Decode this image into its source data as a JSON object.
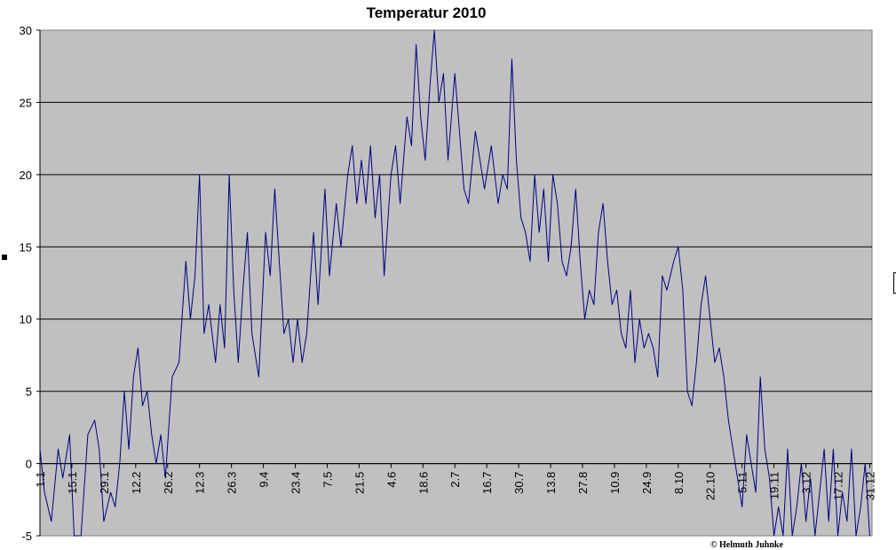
{
  "chart_data": {
    "type": "line",
    "title": "Temperatur 2010",
    "xlabel": "",
    "ylabel": "",
    "ylim": [
      -5,
      30
    ],
    "yticks": [
      -5,
      0,
      5,
      10,
      15,
      20,
      25,
      30
    ],
    "grid": true,
    "background": "#c0c0c0",
    "line_color": "#000080",
    "x_tick_labels": [
      "1.1",
      "15.1",
      "29.1",
      "12.2",
      "26.2",
      "12.3",
      "26.3",
      "9.4",
      "23.4",
      "7.5",
      "21.5",
      "4.6",
      "18.6",
      "2.7",
      "16.7",
      "30.7",
      "13.8",
      "27.8",
      "10.9",
      "24.9",
      "8.10",
      "22.10",
      "5.11",
      "19.11",
      "3.12",
      "17.12",
      "31.12"
    ],
    "x_tick_days": [
      0,
      14,
      28,
      42,
      56,
      70,
      84,
      98,
      112,
      126,
      140,
      154,
      168,
      182,
      196,
      210,
      224,
      238,
      252,
      266,
      280,
      294,
      308,
      322,
      336,
      350,
      364
    ],
    "anchors": [
      [
        0,
        1
      ],
      [
        2,
        -2
      ],
      [
        5,
        -4
      ],
      [
        8,
        1
      ],
      [
        10,
        -1
      ],
      [
        13,
        2
      ],
      [
        15,
        -6
      ],
      [
        18,
        -5
      ],
      [
        21,
        2
      ],
      [
        24,
        3
      ],
      [
        26,
        1
      ],
      [
        28,
        -4
      ],
      [
        31,
        -2
      ],
      [
        33,
        -3
      ],
      [
        35,
        0
      ],
      [
        37,
        5
      ],
      [
        39,
        1
      ],
      [
        41,
        6
      ],
      [
        43,
        8
      ],
      [
        45,
        4
      ],
      [
        47,
        5
      ],
      [
        49,
        2
      ],
      [
        51,
        0
      ],
      [
        53,
        2
      ],
      [
        55,
        -1
      ],
      [
        58,
        6
      ],
      [
        61,
        7
      ],
      [
        64,
        14
      ],
      [
        66,
        10
      ],
      [
        68,
        13
      ],
      [
        70,
        20
      ],
      [
        72,
        9
      ],
      [
        74,
        11
      ],
      [
        77,
        7
      ],
      [
        79,
        11
      ],
      [
        81,
        8
      ],
      [
        83,
        20
      ],
      [
        85,
        12
      ],
      [
        87,
        7
      ],
      [
        89,
        12
      ],
      [
        91,
        16
      ],
      [
        93,
        9
      ],
      [
        96,
        6
      ],
      [
        99,
        16
      ],
      [
        101,
        13
      ],
      [
        103,
        19
      ],
      [
        105,
        14
      ],
      [
        107,
        9
      ],
      [
        109,
        10
      ],
      [
        111,
        7
      ],
      [
        113,
        10
      ],
      [
        115,
        7
      ],
      [
        117,
        9
      ],
      [
        120,
        16
      ],
      [
        122,
        11
      ],
      [
        125,
        19
      ],
      [
        127,
        13
      ],
      [
        130,
        18
      ],
      [
        132,
        15
      ],
      [
        135,
        20
      ],
      [
        137,
        22
      ],
      [
        139,
        18
      ],
      [
        141,
        21
      ],
      [
        143,
        18
      ],
      [
        145,
        22
      ],
      [
        147,
        17
      ],
      [
        149,
        20
      ],
      [
        151,
        13
      ],
      [
        154,
        20
      ],
      [
        156,
        22
      ],
      [
        158,
        18
      ],
      [
        161,
        24
      ],
      [
        163,
        22
      ],
      [
        165,
        29
      ],
      [
        167,
        24
      ],
      [
        169,
        21
      ],
      [
        171,
        26
      ],
      [
        173,
        30
      ],
      [
        175,
        25
      ],
      [
        177,
        27
      ],
      [
        179,
        21
      ],
      [
        182,
        27
      ],
      [
        184,
        23
      ],
      [
        186,
        19
      ],
      [
        188,
        18
      ],
      [
        191,
        23
      ],
      [
        193,
        21
      ],
      [
        195,
        19
      ],
      [
        198,
        22
      ],
      [
        201,
        18
      ],
      [
        203,
        20
      ],
      [
        205,
        19
      ],
      [
        207,
        28
      ],
      [
        209,
        21
      ],
      [
        211,
        17
      ],
      [
        213,
        16
      ],
      [
        215,
        14
      ],
      [
        217,
        20
      ],
      [
        219,
        16
      ],
      [
        221,
        19
      ],
      [
        223,
        14
      ],
      [
        225,
        20
      ],
      [
        227,
        18
      ],
      [
        229,
        14
      ],
      [
        231,
        13
      ],
      [
        233,
        15
      ],
      [
        235,
        19
      ],
      [
        237,
        14
      ],
      [
        239,
        10
      ],
      [
        241,
        12
      ],
      [
        243,
        11
      ],
      [
        245,
        16
      ],
      [
        247,
        18
      ],
      [
        249,
        14
      ],
      [
        251,
        11
      ],
      [
        253,
        12
      ],
      [
        255,
        9
      ],
      [
        257,
        8
      ],
      [
        259,
        12
      ],
      [
        261,
        7
      ],
      [
        263,
        10
      ],
      [
        265,
        8
      ],
      [
        267,
        9
      ],
      [
        269,
        8
      ],
      [
        271,
        6
      ],
      [
        273,
        13
      ],
      [
        275,
        12
      ],
      [
        278,
        14
      ],
      [
        280,
        15
      ],
      [
        282,
        12
      ],
      [
        284,
        5
      ],
      [
        286,
        4
      ],
      [
        288,
        7
      ],
      [
        290,
        11
      ],
      [
        292,
        13
      ],
      [
        294,
        10
      ],
      [
        296,
        7
      ],
      [
        298,
        8
      ],
      [
        300,
        6
      ],
      [
        302,
        3
      ],
      [
        304,
        1
      ],
      [
        306,
        -1
      ],
      [
        308,
        -3
      ],
      [
        310,
        2
      ],
      [
        312,
        0
      ],
      [
        314,
        -2
      ],
      [
        316,
        6
      ],
      [
        318,
        1
      ],
      [
        320,
        -1
      ],
      [
        322,
        -5
      ],
      [
        324,
        -3
      ],
      [
        326,
        -6
      ],
      [
        328,
        1
      ],
      [
        330,
        -5
      ],
      [
        332,
        -3
      ],
      [
        334,
        0
      ],
      [
        336,
        -4
      ],
      [
        338,
        -1
      ],
      [
        340,
        -5
      ],
      [
        342,
        -2
      ],
      [
        344,
        1
      ],
      [
        346,
        -4
      ],
      [
        348,
        1
      ],
      [
        350,
        -5
      ],
      [
        352,
        -2
      ],
      [
        354,
        -4
      ],
      [
        356,
        1
      ],
      [
        358,
        -5
      ],
      [
        360,
        -3
      ],
      [
        362,
        0
      ],
      [
        364,
        -5
      ]
    ]
  },
  "footer": {
    "copyright": "© Helmuth Juhnke"
  }
}
